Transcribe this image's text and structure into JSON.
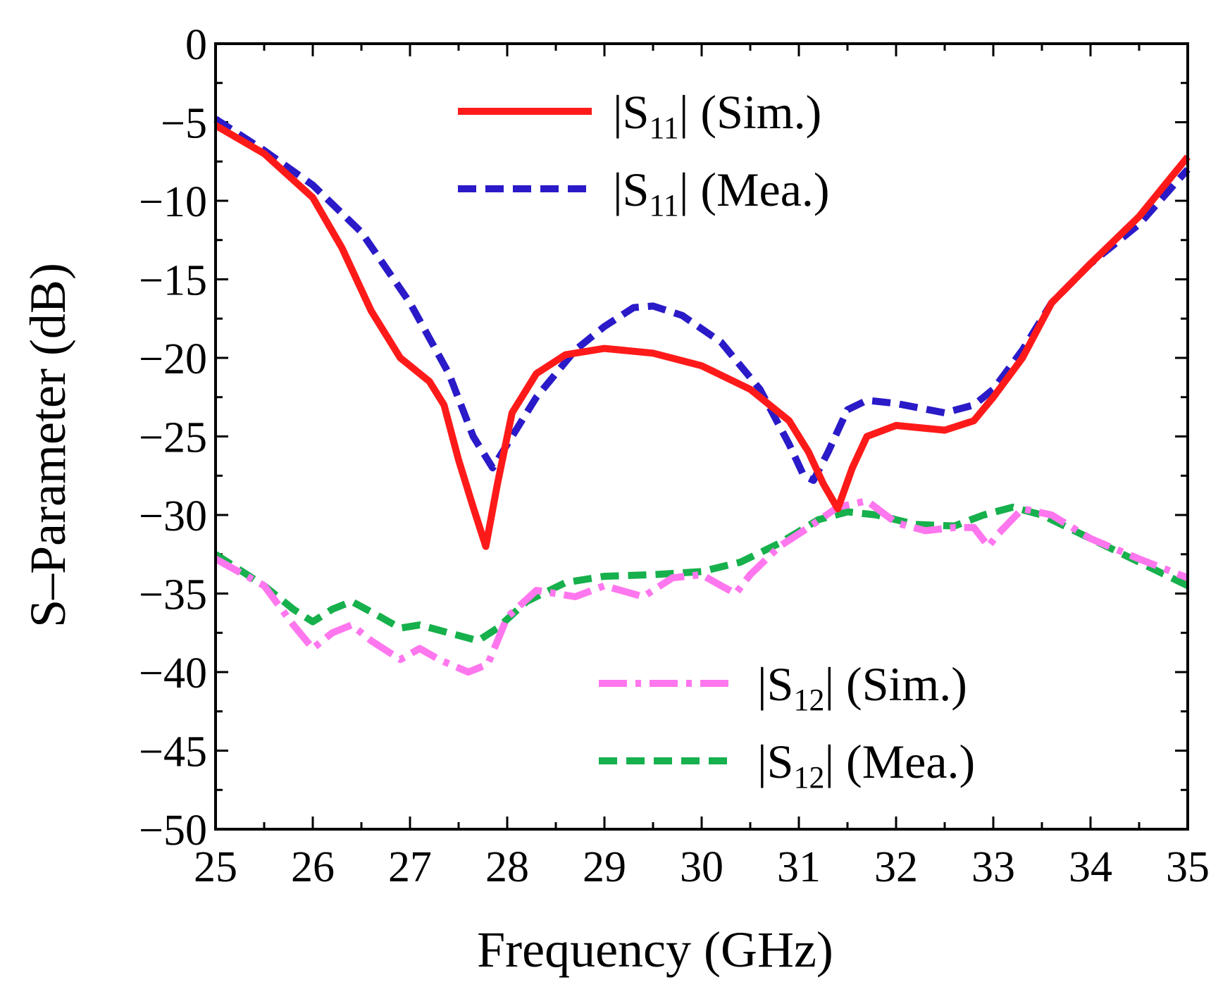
{
  "chart_data": {
    "type": "line",
    "xlabel": "Frequency (GHz)",
    "ylabel": "S–Parameter (dB)",
    "xlim": [
      25,
      35
    ],
    "ylim": [
      -50,
      0
    ],
    "xticks": [
      "25",
      "26",
      "27",
      "28",
      "29",
      "30",
      "31",
      "32",
      "33",
      "34",
      "35"
    ],
    "yticks": [
      "0",
      "−5",
      "−10",
      "−15",
      "−20",
      "−25",
      "−30",
      "−35",
      "−40",
      "−45",
      "−50"
    ],
    "legend_placement": "top-center and bottom-right",
    "series": [
      {
        "name": "|S11| (Sim.)",
        "legend_main": "|S",
        "legend_sub": "11",
        "legend_tail": "| (Sim.)",
        "color": "#ff1a1a",
        "dash": "solid",
        "x": [
          25.0,
          25.5,
          26.0,
          26.3,
          26.6,
          26.9,
          27.2,
          27.35,
          27.5,
          27.65,
          27.78,
          27.9,
          28.05,
          28.3,
          28.6,
          29.0,
          29.5,
          30.0,
          30.5,
          30.9,
          31.1,
          31.25,
          31.4,
          31.55,
          31.7,
          32.0,
          32.5,
          32.8,
          33.0,
          33.3,
          33.6,
          34.0,
          34.5,
          35.0
        ],
        "y": [
          -5.2,
          -7.0,
          -9.8,
          -13.0,
          -17.0,
          -20.0,
          -21.5,
          -23.0,
          -26.5,
          -29.5,
          -32.0,
          -28.0,
          -23.5,
          -21.0,
          -19.8,
          -19.4,
          -19.7,
          -20.5,
          -22.0,
          -24.0,
          -26.0,
          -28.0,
          -29.6,
          -27.0,
          -25.0,
          -24.3,
          -24.6,
          -24.0,
          -22.5,
          -20.0,
          -16.5,
          -14.0,
          -11.0,
          -7.2
        ]
      },
      {
        "name": "|S11| (Mea.)",
        "legend_main": "|S",
        "legend_sub": "11",
        "legend_tail": "| (Mea.)",
        "color": "#2a1ac8",
        "dash": "dashed",
        "x": [
          25.0,
          25.5,
          26.0,
          26.5,
          27.0,
          27.4,
          27.65,
          27.85,
          28.0,
          28.3,
          28.7,
          29.0,
          29.3,
          29.5,
          29.8,
          30.2,
          30.6,
          30.9,
          31.05,
          31.15,
          31.3,
          31.5,
          31.7,
          32.0,
          32.5,
          32.8,
          33.0,
          33.3,
          33.6,
          34.0,
          34.5,
          35.0
        ],
        "y": [
          -4.8,
          -6.8,
          -9.0,
          -12.0,
          -16.5,
          -21.0,
          -25.0,
          -27.0,
          -25.5,
          -22.5,
          -19.5,
          -18.0,
          -16.8,
          -16.7,
          -17.3,
          -19.0,
          -22.0,
          -25.5,
          -27.5,
          -27.8,
          -26.0,
          -23.3,
          -22.7,
          -22.9,
          -23.5,
          -23.0,
          -22.0,
          -19.5,
          -16.5,
          -14.0,
          -11.5,
          -8.0
        ]
      },
      {
        "name": "|S12| (Sim.)",
        "legend_main": "|S",
        "legend_sub": "12",
        "legend_tail": "| (Sim.)",
        "color": "#ff77ee",
        "dash": "dash-dot",
        "x": [
          25.0,
          25.5,
          25.8,
          26.0,
          26.2,
          26.4,
          26.6,
          26.9,
          27.1,
          27.3,
          27.6,
          27.8,
          28.0,
          28.3,
          28.7,
          29.0,
          29.4,
          29.7,
          30.0,
          30.2,
          30.35,
          30.5,
          30.8,
          31.1,
          31.4,
          31.7,
          32.0,
          32.3,
          32.6,
          32.8,
          32.95,
          33.05,
          33.3,
          33.6,
          34.0,
          34.5,
          35.0
        ],
        "y": [
          -32.8,
          -34.5,
          -37.0,
          -38.5,
          -37.5,
          -37.0,
          -38.0,
          -39.2,
          -38.5,
          -39.2,
          -40.0,
          -39.5,
          -36.5,
          -34.8,
          -35.2,
          -34.5,
          -35.2,
          -34.0,
          -33.8,
          -34.5,
          -35.0,
          -33.8,
          -32.0,
          -30.8,
          -29.5,
          -29.1,
          -30.5,
          -31.0,
          -30.8,
          -30.8,
          -32.0,
          -31.2,
          -29.6,
          -30.0,
          -31.5,
          -32.8,
          -34.0
        ]
      },
      {
        "name": "|S12| (Mea.)",
        "legend_main": "|S",
        "legend_sub": "12",
        "legend_tail": "| (Mea.)",
        "color": "#16b04c",
        "dash": "dashed",
        "x": [
          25.0,
          25.5,
          25.8,
          26.0,
          26.2,
          26.4,
          26.7,
          26.9,
          27.1,
          27.4,
          27.7,
          27.9,
          28.2,
          28.6,
          29.0,
          29.5,
          30.0,
          30.4,
          30.8,
          31.2,
          31.5,
          31.8,
          32.2,
          32.6,
          32.9,
          33.2,
          33.5,
          34.0,
          34.5,
          35.0
        ],
        "y": [
          -32.5,
          -34.5,
          -36.0,
          -36.8,
          -36.0,
          -35.5,
          -36.5,
          -37.2,
          -37.0,
          -37.5,
          -38.0,
          -37.2,
          -35.5,
          -34.3,
          -33.9,
          -33.8,
          -33.6,
          -33.0,
          -31.8,
          -30.3,
          -29.8,
          -30.0,
          -30.6,
          -30.7,
          -30.0,
          -29.5,
          -30.0,
          -31.5,
          -33.0,
          -34.5
        ]
      }
    ]
  }
}
